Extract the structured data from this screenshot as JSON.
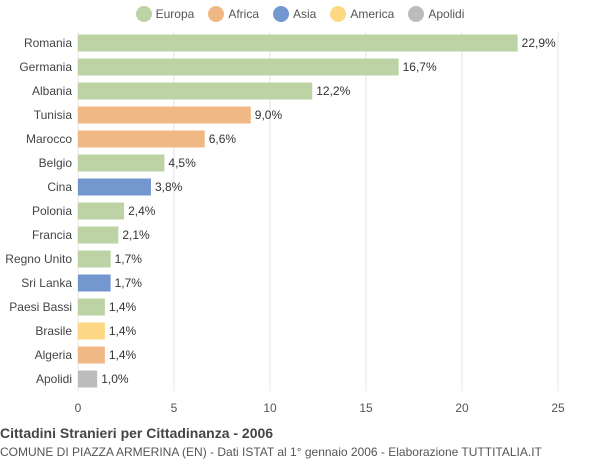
{
  "legend": [
    {
      "label": "Europa",
      "color": "#bdd3a5"
    },
    {
      "label": "Africa",
      "color": "#f0b884"
    },
    {
      "label": "Asia",
      "color": "#7597cf"
    },
    {
      "label": "America",
      "color": "#fcd884"
    },
    {
      "label": "Apolidi",
      "color": "#bcbcbc"
    }
  ],
  "footer": {
    "title": "Cittadini Stranieri per Cittadinanza - 2006",
    "subtitle": "COMUNE DI PIAZZA ARMERINA (EN) - Dati ISTAT al 1° gennaio 2006 - Elaborazione TUTTITALIA.IT"
  },
  "chart_data": {
    "type": "bar",
    "orientation": "horizontal",
    "categories": [
      "Romania",
      "Germania",
      "Albania",
      "Tunisia",
      "Marocco",
      "Belgio",
      "Cina",
      "Polonia",
      "Francia",
      "Regno Unito",
      "Sri Lanka",
      "Paesi Bassi",
      "Brasile",
      "Algeria",
      "Apolidi"
    ],
    "values": [
      22.9,
      16.7,
      12.2,
      9.0,
      6.6,
      4.5,
      3.8,
      2.4,
      2.1,
      1.7,
      1.7,
      1.4,
      1.4,
      1.4,
      1.0
    ],
    "value_labels": [
      "22,9%",
      "16,7%",
      "12,2%",
      "9,0%",
      "6,6%",
      "4,5%",
      "3,8%",
      "2,4%",
      "2,1%",
      "1,7%",
      "1,7%",
      "1,4%",
      "1,4%",
      "1,4%",
      "1,0%"
    ],
    "groups": [
      "Europa",
      "Europa",
      "Europa",
      "Africa",
      "Africa",
      "Europa",
      "Asia",
      "Europa",
      "Europa",
      "Europa",
      "Asia",
      "Europa",
      "America",
      "Africa",
      "Apolidi"
    ],
    "xlim": [
      0,
      25
    ],
    "xticks": [
      0,
      5,
      10,
      15,
      20,
      25
    ],
    "xtick_labels": [
      "0",
      "5",
      "10",
      "15",
      "20",
      "25"
    ],
    "grid": true,
    "legend_position": "top"
  }
}
